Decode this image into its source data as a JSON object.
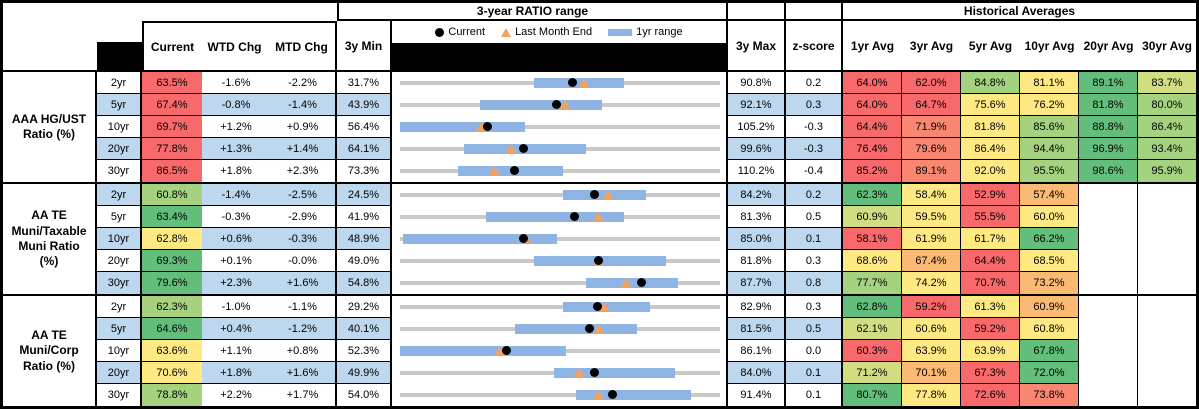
{
  "header": {
    "range_title": "3-year RATIO range",
    "hist_title": "Historical Averages",
    "cols": {
      "current": "Current",
      "wtd": "WTD Chg",
      "mtd": "MTD Chg",
      "min": "3y Min",
      "max": "3y Max",
      "z": "z-score"
    },
    "avg_cols": [
      "1yr Avg",
      "3yr Avg",
      "5yr Avg",
      "10yr Avg",
      "20yr Avg",
      "30yr Avg"
    ],
    "legend": [
      {
        "marker": "dot",
        "label": "Current"
      },
      {
        "marker": "triangle",
        "label": "Last Month End"
      },
      {
        "marker": "bar",
        "label": "1yr range"
      }
    ]
  },
  "colors": {
    "band_blue": "#BDD7EE",
    "track_gray": "#C9C9C9",
    "bar_blue": "#8EB4E3",
    "marker_orange": "#F4A25B",
    "marker_black": "#000000",
    "red": "#F8696B",
    "salmon": "#F98670",
    "orange": "#FBBA74",
    "yellow": "#FFE983",
    "yellowgreen": "#D2DD81",
    "lightgreen": "#A5D27F",
    "green": "#63BE7B"
  },
  "chart_data": {
    "type": "table",
    "note": "range strip charts span 3y Min to 3y Max; dot=Current, triangle=Last Month End, bar=1yr range (fractions of track)",
    "groups": [
      {
        "label_lines": [
          "AAA HG/UST",
          "Ratio (%)"
        ],
        "rows": [
          {
            "tenor": "2yr",
            "current": "63.5%",
            "current_color": "red",
            "wtd": "-1.6%",
            "mtd": "-2.2%",
            "min": "31.7%",
            "max": "90.8%",
            "z": "0.2",
            "bar": [
              0.42,
              0.7
            ],
            "dot": 0.538,
            "tri": 0.575,
            "avgs": [
              {
                "v": "64.0%",
                "c": "red"
              },
              {
                "v": "62.0%",
                "c": "red"
              },
              {
                "v": "84.8%",
                "c": "lightgreen"
              },
              {
                "v": "81.1%",
                "c": "yellow"
              },
              {
                "v": "89.1%",
                "c": "green"
              },
              {
                "v": "83.7%",
                "c": "yellowgreen"
              }
            ]
          },
          {
            "tenor": "5yr",
            "current": "67.4%",
            "current_color": "red",
            "wtd": "-0.8%",
            "mtd": "-1.4%",
            "min": "43.9%",
            "max": "92.1%",
            "z": "0.3",
            "bar": [
              0.25,
              0.63
            ],
            "dot": 0.488,
            "tri": 0.517,
            "avgs": [
              {
                "v": "64.0%",
                "c": "red"
              },
              {
                "v": "64.7%",
                "c": "red"
              },
              {
                "v": "75.6%",
                "c": "yellow"
              },
              {
                "v": "76.2%",
                "c": "yellow"
              },
              {
                "v": "81.8%",
                "c": "green"
              },
              {
                "v": "80.0%",
                "c": "lightgreen"
              }
            ]
          },
          {
            "tenor": "10yr",
            "current": "69.7%",
            "current_color": "red",
            "wtd": "+1.2%",
            "mtd": "+0.9%",
            "min": "56.4%",
            "max": "105.2%",
            "z": "-0.3",
            "bar": [
              0.0,
              0.39
            ],
            "dot": 0.273,
            "tri": 0.254,
            "avgs": [
              {
                "v": "64.4%",
                "c": "red"
              },
              {
                "v": "71.9%",
                "c": "salmon"
              },
              {
                "v": "81.8%",
                "c": "yellow"
              },
              {
                "v": "85.6%",
                "c": "lightgreen"
              },
              {
                "v": "88.8%",
                "c": "green"
              },
              {
                "v": "86.4%",
                "c": "lightgreen"
              }
            ]
          },
          {
            "tenor": "20yr",
            "current": "77.8%",
            "current_color": "red",
            "wtd": "+1.3%",
            "mtd": "+1.4%",
            "min": "64.1%",
            "max": "99.6%",
            "z": "-0.3",
            "bar": [
              0.2,
              0.58
            ],
            "dot": 0.386,
            "tri": 0.346,
            "avgs": [
              {
                "v": "76.4%",
                "c": "red"
              },
              {
                "v": "79.6%",
                "c": "salmon"
              },
              {
                "v": "86.4%",
                "c": "yellow"
              },
              {
                "v": "94.4%",
                "c": "lightgreen"
              },
              {
                "v": "96.9%",
                "c": "green"
              },
              {
                "v": "93.4%",
                "c": "lightgreen"
              }
            ]
          },
          {
            "tenor": "30yr",
            "current": "86.5%",
            "current_color": "red",
            "wtd": "+1.8%",
            "mtd": "+2.3%",
            "min": "73.3%",
            "max": "110.2%",
            "z": "-0.4",
            "bar": [
              0.18,
              0.51
            ],
            "dot": 0.358,
            "tri": 0.295,
            "avgs": [
              {
                "v": "85.2%",
                "c": "red"
              },
              {
                "v": "89.1%",
                "c": "salmon"
              },
              {
                "v": "92.0%",
                "c": "yellow"
              },
              {
                "v": "95.5%",
                "c": "lightgreen"
              },
              {
                "v": "98.6%",
                "c": "green"
              },
              {
                "v": "95.9%",
                "c": "lightgreen"
              }
            ]
          }
        ]
      },
      {
        "label_lines": [
          "AA TE",
          "Muni/Taxable",
          "Muni Ratio",
          "(%)"
        ],
        "rows": [
          {
            "tenor": "2yr",
            "current": "60.8%",
            "current_color": "lightgreen",
            "wtd": "-1.4%",
            "mtd": "-2.5%",
            "min": "24.5%",
            "max": "84.2%",
            "z": "0.2",
            "bar": [
              0.51,
              0.77
            ],
            "dot": 0.608,
            "tri": 0.65,
            "avgs": [
              {
                "v": "62.3%",
                "c": "green"
              },
              {
                "v": "58.4%",
                "c": "yellow"
              },
              {
                "v": "52.9%",
                "c": "red"
              },
              {
                "v": "57.4%",
                "c": "orange"
              },
              {
                "v": "",
                "c": ""
              },
              {
                "v": "",
                "c": ""
              }
            ]
          },
          {
            "tenor": "5yr",
            "current": "63.4%",
            "current_color": "green",
            "wtd": "-0.3%",
            "mtd": "-2.9%",
            "min": "41.9%",
            "max": "81.3%",
            "z": "0.5",
            "bar": [
              0.27,
              0.7
            ],
            "dot": 0.546,
            "tri": 0.619,
            "avgs": [
              {
                "v": "60.9%",
                "c": "yellowgreen"
              },
              {
                "v": "59.5%",
                "c": "yellow"
              },
              {
                "v": "55.5%",
                "c": "red"
              },
              {
                "v": "60.0%",
                "c": "yellow"
              },
              {
                "v": "",
                "c": ""
              },
              {
                "v": "",
                "c": ""
              }
            ]
          },
          {
            "tenor": "10yr",
            "current": "62.8%",
            "current_color": "yellow",
            "wtd": "+0.6%",
            "mtd": "-0.3%",
            "min": "48.9%",
            "max": "85.0%",
            "z": "0.1",
            "bar": [
              0.01,
              0.49
            ],
            "dot": 0.385,
            "tri": 0.393,
            "avgs": [
              {
                "v": "58.1%",
                "c": "red"
              },
              {
                "v": "61.9%",
                "c": "yellow"
              },
              {
                "v": "61.7%",
                "c": "yellow"
              },
              {
                "v": "66.2%",
                "c": "green"
              },
              {
                "v": "",
                "c": ""
              },
              {
                "v": "",
                "c": ""
              }
            ]
          },
          {
            "tenor": "20yr",
            "current": "69.3%",
            "current_color": "green",
            "wtd": "+0.1%",
            "mtd": "-0.0%",
            "min": "49.0%",
            "max": "81.8%",
            "z": "0.3",
            "bar": [
              0.42,
              0.83
            ],
            "dot": 0.619,
            "tri": 0.619,
            "avgs": [
              {
                "v": "68.6%",
                "c": "yellow"
              },
              {
                "v": "67.4%",
                "c": "orange"
              },
              {
                "v": "64.4%",
                "c": "red"
              },
              {
                "v": "68.5%",
                "c": "yellow"
              },
              {
                "v": "",
                "c": ""
              },
              {
                "v": "",
                "c": ""
              }
            ]
          },
          {
            "tenor": "30yr",
            "current": "79.6%",
            "current_color": "green",
            "wtd": "+2.3%",
            "mtd": "+1.6%",
            "min": "54.8%",
            "max": "87.7%",
            "z": "0.8",
            "bar": [
              0.58,
              0.87
            ],
            "dot": 0.754,
            "tri": 0.705,
            "avgs": [
              {
                "v": "77.7%",
                "c": "lightgreen"
              },
              {
                "v": "74.2%",
                "c": "yellow"
              },
              {
                "v": "70.7%",
                "c": "red"
              },
              {
                "v": "73.2%",
                "c": "orange"
              },
              {
                "v": "",
                "c": ""
              },
              {
                "v": "",
                "c": ""
              }
            ]
          }
        ]
      },
      {
        "label_lines": [
          "AA TE",
          "Muni/Corp",
          "Ratio (%)"
        ],
        "rows": [
          {
            "tenor": "2yr",
            "current": "62.3%",
            "current_color": "lightgreen",
            "wtd": "-1.0%",
            "mtd": "-1.1%",
            "min": "29.2%",
            "max": "82.9%",
            "z": "0.3",
            "bar": [
              0.51,
              0.78
            ],
            "dot": 0.616,
            "tri": 0.637,
            "avgs": [
              {
                "v": "62.8%",
                "c": "green"
              },
              {
                "v": "59.2%",
                "c": "red"
              },
              {
                "v": "61.3%",
                "c": "yellow"
              },
              {
                "v": "60.9%",
                "c": "orange"
              },
              {
                "v": "",
                "c": ""
              },
              {
                "v": "",
                "c": ""
              }
            ]
          },
          {
            "tenor": "5yr",
            "current": "64.6%",
            "current_color": "green",
            "wtd": "+0.4%",
            "mtd": "-1.2%",
            "min": "40.1%",
            "max": "81.5%",
            "z": "0.5",
            "bar": [
              0.36,
              0.74
            ],
            "dot": 0.592,
            "tri": 0.621,
            "avgs": [
              {
                "v": "62.1%",
                "c": "yellowgreen"
              },
              {
                "v": "60.6%",
                "c": "yellow"
              },
              {
                "v": "59.2%",
                "c": "red"
              },
              {
                "v": "60.8%",
                "c": "yellow"
              },
              {
                "v": "",
                "c": ""
              },
              {
                "v": "",
                "c": ""
              }
            ]
          },
          {
            "tenor": "10yr",
            "current": "63.6%",
            "current_color": "yellow",
            "wtd": "+1.1%",
            "mtd": "+0.8%",
            "min": "52.3%",
            "max": "86.1%",
            "z": "0.0",
            "bar": [
              0.0,
              0.52
            ],
            "dot": 0.334,
            "tri": 0.311,
            "avgs": [
              {
                "v": "60.3%",
                "c": "red"
              },
              {
                "v": "63.9%",
                "c": "yellow"
              },
              {
                "v": "63.9%",
                "c": "yellow"
              },
              {
                "v": "67.8%",
                "c": "green"
              },
              {
                "v": "",
                "c": ""
              },
              {
                "v": "",
                "c": ""
              }
            ]
          },
          {
            "tenor": "20yr",
            "current": "70.6%",
            "current_color": "yellow",
            "wtd": "+1.8%",
            "mtd": "+1.6%",
            "min": "49.9%",
            "max": "84.0%",
            "z": "0.1",
            "bar": [
              0.48,
              0.86
            ],
            "dot": 0.607,
            "tri": 0.56,
            "avgs": [
              {
                "v": "71.2%",
                "c": "yellowgreen"
              },
              {
                "v": "70.1%",
                "c": "orange"
              },
              {
                "v": "67.3%",
                "c": "red"
              },
              {
                "v": "72.0%",
                "c": "green"
              },
              {
                "v": "",
                "c": ""
              },
              {
                "v": "",
                "c": ""
              }
            ]
          },
          {
            "tenor": "30yr",
            "current": "78.8%",
            "current_color": "lightgreen",
            "wtd": "+2.2%",
            "mtd": "+1.7%",
            "min": "54.0%",
            "max": "91.4%",
            "z": "0.1",
            "bar": [
              0.55,
              0.91
            ],
            "dot": 0.663,
            "tri": 0.618,
            "avgs": [
              {
                "v": "80.7%",
                "c": "green"
              },
              {
                "v": "77.8%",
                "c": "yellow"
              },
              {
                "v": "72.6%",
                "c": "red"
              },
              {
                "v": "73.8%",
                "c": "salmon"
              },
              {
                "v": "",
                "c": ""
              },
              {
                "v": "",
                "c": ""
              }
            ]
          }
        ]
      }
    ]
  }
}
